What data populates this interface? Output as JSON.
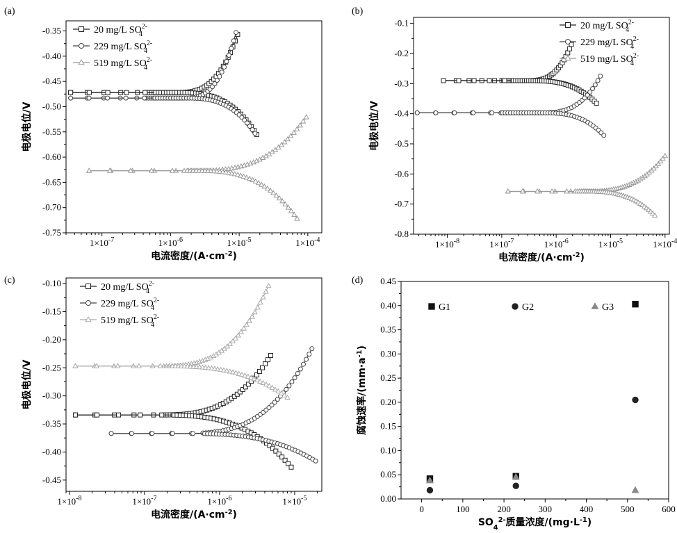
{
  "chart_data": [
    {
      "panel": "(a)",
      "type": "line",
      "xscale": "log",
      "xlabel": "电流密度/(A·cm⁻²)",
      "ylabel": "电极电位/V",
      "xlim": [
        3e-08,
        0.00016
      ],
      "ylim": [
        -0.75,
        -0.33
      ],
      "xticks": [
        1e-07,
        1e-06,
        1e-05,
        0.0001
      ],
      "xtick_labels": [
        "1×10⁻⁷",
        "1×10⁻⁶",
        "1×10⁻⁵",
        "1×10⁻⁴"
      ],
      "yticks": [
        -0.75,
        -0.7,
        -0.65,
        -0.6,
        -0.55,
        -0.5,
        -0.45,
        -0.4,
        -0.35
      ],
      "ytick_labels": [
        "-0.75",
        "-0.70",
        "-0.65",
        "-0.60",
        "-0.55",
        "-0.50",
        "-0.45",
        "-0.40",
        "-0.35"
      ],
      "legend_position": "top-left",
      "series": [
        {
          "name": "20 mg/L SO₄²⁻",
          "marker": "square",
          "color": "#222222",
          "ecorr": -0.472,
          "icorr": 1.2e-06,
          "anodic_end": [
            9.5e-06,
            -0.357
          ],
          "cathodic_end": [
            1.8e-05,
            -0.555
          ],
          "start": [
            3.5e-08,
            -0.472
          ]
        },
        {
          "name": "229 mg/L SO₄²⁻",
          "marker": "circle",
          "color": "#444444",
          "ecorr": -0.483,
          "icorr": 1.5e-06,
          "anodic_end": [
            9e-06,
            -0.353
          ],
          "cathodic_end": [
            1.7e-05,
            -0.553
          ],
          "start": [
            3.5e-08,
            -0.483
          ]
        },
        {
          "name": "519 mg/L SO₄²⁻",
          "marker": "triangle",
          "color": "#999999",
          "ecorr": -0.627,
          "icorr": 2e-06,
          "anodic_end": [
            9.5e-05,
            -0.521
          ],
          "cathodic_end": [
            7e-05,
            -0.722
          ],
          "start": [
            6.5e-08,
            -0.627
          ]
        }
      ]
    },
    {
      "panel": "(b)",
      "type": "line",
      "xscale": "log",
      "xlabel": "电流密度/(A·cm⁻²)",
      "ylabel": "电极电位/V",
      "xlim": [
        2.4e-09,
        0.00012
      ],
      "ylim": [
        -0.8,
        -0.08
      ],
      "xticks": [
        1e-08,
        1e-07,
        1e-06,
        1e-05,
        0.0001
      ],
      "xtick_labels": [
        "1×10⁻⁸",
        "1×10⁻⁷",
        "1×10⁻⁶",
        "1×10⁻⁵",
        "1×10⁻⁴"
      ],
      "yticks": [
        -0.8,
        -0.7,
        -0.6,
        -0.5,
        -0.4,
        -0.3,
        -0.2,
        -0.1
      ],
      "ytick_labels": [
        "-0.8",
        "-0.7",
        "-0.6",
        "-0.5",
        "-0.4",
        "-0.3",
        "-0.2",
        "-0.1"
      ],
      "legend_position": "top-right",
      "series": [
        {
          "name": "20 mg/L SO₄²⁻",
          "marker": "square",
          "color": "#222222",
          "ecorr": -0.29,
          "icorr": 3e-07,
          "anodic_end": [
            1.9e-06,
            -0.17
          ],
          "cathodic_end": [
            5.5e-06,
            -0.365
          ],
          "start": [
            8.5e-09,
            -0.29
          ]
        },
        {
          "name": "229 mg/L SO₄²⁻",
          "marker": "circle",
          "color": "#444444",
          "ecorr": -0.397,
          "icorr": 5e-07,
          "anodic_end": [
            6.5e-06,
            -0.275
          ],
          "cathodic_end": [
            7.5e-06,
            -0.472
          ],
          "start": [
            2.8e-09,
            -0.397
          ]
        },
        {
          "name": "519 mg/L SO₄²⁻",
          "marker": "triangle",
          "color": "#999999",
          "ecorr": -0.658,
          "icorr": 3e-06,
          "anodic_end": [
            0.0001,
            -0.54
          ],
          "cathodic_end": [
            6.5e-05,
            -0.738
          ],
          "start": [
            1.3e-07,
            -0.658
          ]
        }
      ]
    },
    {
      "panel": "(c)",
      "type": "line",
      "xscale": "log",
      "xlabel": "电流密度/(A·cm⁻²)",
      "ylabel": "电极电位/V",
      "xlim": [
        9e-09,
        2.3e-05
      ],
      "ylim": [
        -0.47,
        -0.09
      ],
      "xticks": [
        1e-08,
        1e-07,
        1e-06,
        1e-05
      ],
      "xtick_labels": [
        "1×10⁻⁸",
        "1×10⁻⁷",
        "1×10⁻⁶",
        "1×10⁻⁵"
      ],
      "yticks": [
        -0.45,
        -0.4,
        -0.35,
        -0.3,
        -0.25,
        -0.2,
        -0.15,
        -0.1
      ],
      "ytick_labels": [
        "-0.45",
        "-0.40",
        "-0.35",
        "-0.30",
        "-0.25",
        "-0.20",
        "-0.15",
        "-0.10"
      ],
      "legend_position": "top-left",
      "series": [
        {
          "name": "20 mg/L SO₄²⁻",
          "marker": "square",
          "color": "#222222",
          "ecorr": -0.334,
          "icorr": 1.5e-07,
          "anodic_end": [
            4.8e-06,
            -0.228
          ],
          "cathodic_end": [
            9e-06,
            -0.427
          ],
          "start": [
            1.2e-08,
            -0.334
          ]
        },
        {
          "name": "229 mg/L SO₄²⁻",
          "marker": "circle",
          "color": "#444444",
          "ecorr": -0.367,
          "icorr": 3e-07,
          "anodic_end": [
            1.7e-05,
            -0.216
          ],
          "cathodic_end": [
            1.9e-05,
            -0.416
          ],
          "start": [
            3.6e-08,
            -0.367
          ]
        },
        {
          "name": "519 mg/L SO₄²⁻",
          "marker": "triangle",
          "color": "#aaaaaa",
          "ecorr": -0.247,
          "icorr": 1.5e-07,
          "anodic_end": [
            4.5e-06,
            -0.104
          ],
          "cathodic_end": [
            8e-06,
            -0.303
          ],
          "start": [
            1.2e-08,
            -0.247
          ]
        }
      ]
    },
    {
      "panel": "(d)",
      "type": "scatter",
      "xlabel": "SO₄²⁻质量浓度/(mg·L⁻¹)",
      "ylabel": "腐蚀速率/(mm·a⁻¹)",
      "xlim": [
        -50,
        600
      ],
      "ylim": [
        0,
        0.45
      ],
      "xticks": [
        0,
        100,
        200,
        300,
        400,
        500,
        600
      ],
      "xtick_labels": [
        "0",
        "100",
        "200",
        "300",
        "400",
        "500",
        "600"
      ],
      "yticks": [
        0,
        0.05,
        0.1,
        0.15,
        0.2,
        0.25,
        0.3,
        0.35,
        0.4,
        0.45
      ],
      "ytick_labels": [
        "0.00",
        "0.05",
        "0.10",
        "0.15",
        "0.20",
        "0.25",
        "0.30",
        "0.35",
        "0.40",
        "0.45"
      ],
      "legend_position": "top",
      "series": [
        {
          "name": "G1",
          "marker": "square",
          "color": "#111111",
          "x": [
            20,
            229,
            519
          ],
          "y": [
            0.042,
            0.047,
            0.403
          ]
        },
        {
          "name": "G2",
          "marker": "circle",
          "color": "#222222",
          "x": [
            20,
            229,
            519
          ],
          "y": [
            0.018,
            0.027,
            0.205
          ]
        },
        {
          "name": "G3",
          "marker": "triangle",
          "color": "#8a8a8a",
          "x": [
            20,
            229,
            519
          ],
          "y": [
            0.038,
            0.045,
            0.018
          ]
        }
      ]
    }
  ]
}
